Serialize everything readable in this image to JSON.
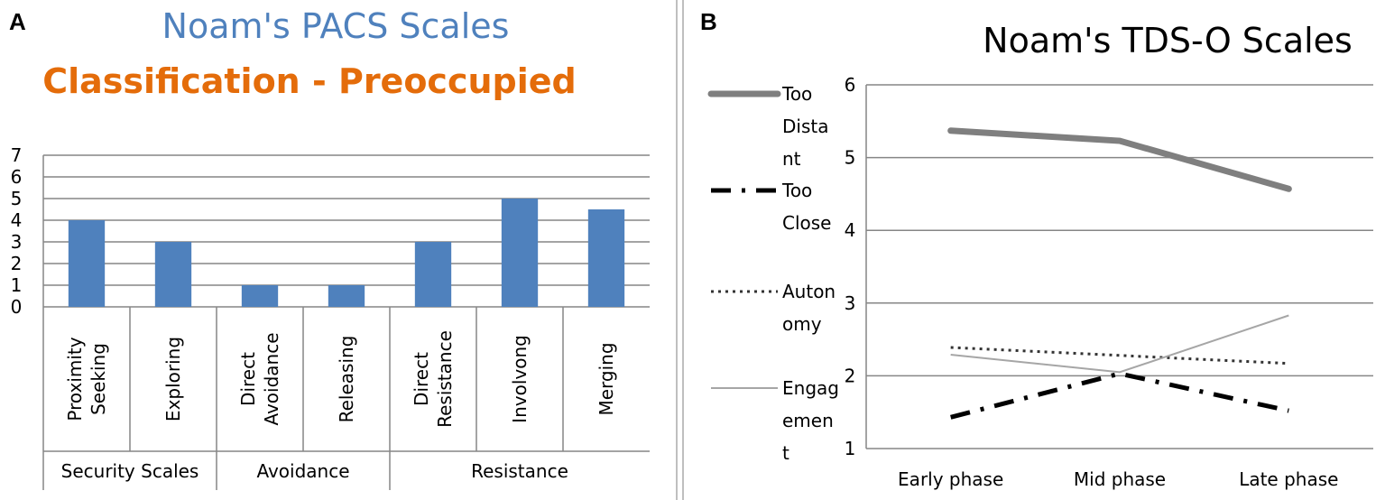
{
  "panel_a": {
    "letter": "A",
    "title": "Noam's PACS Scales",
    "subtitle": "Classification - Preoccupied",
    "title_color": "#4f81bd",
    "subtitle_color": "#e46c0a"
  },
  "panel_b": {
    "letter": "B",
    "title": "Noam's TDS-O Scales"
  },
  "chart_data": [
    {
      "type": "bar",
      "title": "Noam's PACS Scales",
      "subtitle": "Classification - Preoccupied",
      "categories": [
        [
          "Proximity",
          "Seeking"
        ],
        [
          "Exploring"
        ],
        [
          "Direct",
          "Avoidance"
        ],
        [
          "Releasing"
        ],
        [
          "Direct",
          "Resistance"
        ],
        [
          "Involvong"
        ],
        [
          "Merging"
        ]
      ],
      "groups": [
        {
          "label": "Security Scales",
          "span": 2
        },
        {
          "label": "Avoidance",
          "span": 2
        },
        {
          "label": "Resistance",
          "span": 3
        }
      ],
      "values": [
        4,
        3,
        1,
        1,
        3,
        5,
        4.5
      ],
      "ylim": [
        0,
        7
      ],
      "yticks": [
        "0",
        "1",
        "2",
        "3",
        "4",
        "5",
        "6",
        "7"
      ],
      "grid": true,
      "bar_color": "#4f81bd"
    },
    {
      "type": "line",
      "title": "Noam's TDS-O Scales",
      "categories": [
        "Early phase",
        "Mid phase",
        "Late phase"
      ],
      "ylim": [
        1,
        6
      ],
      "yticks": [
        "1",
        "2",
        "3",
        "4",
        "5",
        "6"
      ],
      "grid": true,
      "legend_position": "left",
      "series": [
        {
          "name": [
            "Too",
            "Dista",
            "nt"
          ],
          "values": [
            5.37,
            5.23,
            4.57
          ],
          "color": "#7f7f7f",
          "style": "thick-solid"
        },
        {
          "name": [
            "Too",
            "Close"
          ],
          "values": [
            1.43,
            2.03,
            1.52
          ],
          "color": "#000000",
          "style": "dash-dot"
        },
        {
          "name": [
            "Auton",
            "omy"
          ],
          "values": [
            2.39,
            2.28,
            2.17
          ],
          "color": "#333333",
          "style": "dotted"
        },
        {
          "name": [
            "Engag",
            "emen",
            "t"
          ],
          "values": [
            2.29,
            2.05,
            2.83
          ],
          "color": "#a6a6a6",
          "style": "thin-solid"
        }
      ]
    }
  ]
}
